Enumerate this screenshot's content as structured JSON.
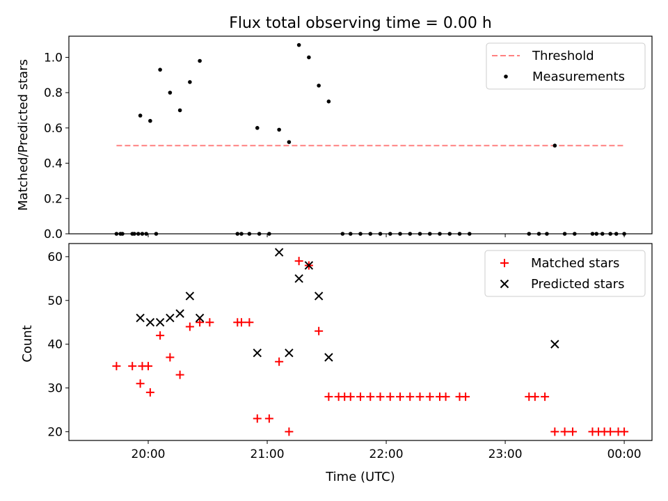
{
  "title": "Flux total observing time = 0.00 h",
  "chart_data": [
    {
      "type": "scatter",
      "ylabel": "Matched/Predicted stars",
      "ylim": [
        0,
        1.12
      ],
      "xlim": [
        "19:20",
        "00:14"
      ],
      "yticks": [
        "0.0",
        "0.2",
        "0.4",
        "0.6",
        "0.8",
        "1.0"
      ],
      "ytick_values": [
        0,
        0.2,
        0.4,
        0.6,
        0.8,
        1.0
      ],
      "legend": {
        "position": "top-right",
        "entries": [
          "Threshold",
          "Measurements"
        ]
      },
      "series": [
        {
          "name": "Threshold",
          "style": "dashed-line",
          "color": "#ff8080",
          "points": [
            [
              "19:44",
              0.5
            ],
            [
              "00:00",
              0.5
            ]
          ]
        },
        {
          "name": "Measurements",
          "style": "dot",
          "color": "#000000",
          "points": [
            [
              "19:44",
              0.0
            ],
            [
              "19:52",
              0.0
            ],
            [
              "19:47",
              0.0
            ],
            [
              "19:46",
              0.0
            ],
            [
              "19:53",
              0.0
            ],
            [
              "19:55",
              0.0
            ],
            [
              "19:57",
              0.0
            ],
            [
              "19:59",
              0.0
            ],
            [
              "20:04",
              0.0
            ],
            [
              "19:56",
              0.67
            ],
            [
              "20:01",
              0.64
            ],
            [
              "20:06",
              0.93
            ],
            [
              "20:11",
              0.8
            ],
            [
              "20:16",
              0.7
            ],
            [
              "20:21",
              0.86
            ],
            [
              "20:26",
              0.98
            ],
            [
              "20:51",
              0.0
            ],
            [
              "20:45",
              0.0
            ],
            [
              "20:47",
              0.0
            ],
            [
              "20:56",
              0.0
            ],
            [
              "21:01",
              0.0
            ],
            [
              "20:55",
              0.6
            ],
            [
              "21:06",
              0.59
            ],
            [
              "21:11",
              0.52
            ],
            [
              "21:16",
              1.07
            ],
            [
              "21:21",
              1.0
            ],
            [
              "21:26",
              0.84
            ],
            [
              "21:31",
              0.75
            ],
            [
              "21:38",
              0.0
            ],
            [
              "21:42",
              0.0
            ],
            [
              "21:47",
              0.0
            ],
            [
              "21:52",
              0.0
            ],
            [
              "21:57",
              0.0
            ],
            [
              "22:02",
              0.0
            ],
            [
              "22:07",
              0.0
            ],
            [
              "22:12",
              0.0
            ],
            [
              "22:17",
              0.0
            ],
            [
              "22:22",
              0.0
            ],
            [
              "22:27",
              0.0
            ],
            [
              "22:32",
              0.0
            ],
            [
              "22:37",
              0.0
            ],
            [
              "22:42",
              0.0
            ],
            [
              "23:12",
              0.0
            ],
            [
              "23:17",
              0.0
            ],
            [
              "23:21",
              0.0
            ],
            [
              "23:25",
              0.5
            ],
            [
              "23:30",
              0.0
            ],
            [
              "23:35",
              0.0
            ],
            [
              "23:44",
              0.0
            ],
            [
              "23:46",
              0.0
            ],
            [
              "23:49",
              0.0
            ],
            [
              "23:53",
              0.0
            ],
            [
              "23:56",
              0.0
            ],
            [
              "00:00",
              0.0
            ]
          ]
        }
      ]
    },
    {
      "type": "scatter",
      "xlabel": "Time (UTC)",
      "ylabel": "Count",
      "ylim": [
        18,
        63
      ],
      "xlim": [
        "19:20",
        "00:14"
      ],
      "xticks": [
        "20:00",
        "21:00",
        "22:00",
        "23:00",
        "00:00"
      ],
      "yticks": [
        "20",
        "30",
        "40",
        "50",
        "60"
      ],
      "ytick_values": [
        20,
        30,
        40,
        50,
        60
      ],
      "legend": {
        "position": "top-right",
        "entries": [
          "Matched stars",
          "Predicted stars"
        ]
      },
      "series": [
        {
          "name": "Matched stars",
          "marker": "plus",
          "color": "#ff0000",
          "points": [
            [
              "19:44",
              35
            ],
            [
              "19:52",
              35
            ],
            [
              "19:57",
              35
            ],
            [
              "20:00",
              35
            ],
            [
              "19:56",
              31
            ],
            [
              "20:01",
              29
            ],
            [
              "20:06",
              42
            ],
            [
              "20:11",
              37
            ],
            [
              "20:16",
              33
            ],
            [
              "20:21",
              44
            ],
            [
              "20:26",
              45
            ],
            [
              "20:31",
              45
            ],
            [
              "20:45",
              45
            ],
            [
              "20:47",
              45
            ],
            [
              "20:51",
              45
            ],
            [
              "20:55",
              23
            ],
            [
              "21:01",
              23
            ],
            [
              "21:06",
              36
            ],
            [
              "21:11",
              20
            ],
            [
              "21:16",
              59
            ],
            [
              "21:21",
              58
            ],
            [
              "21:26",
              43
            ],
            [
              "21:31",
              28
            ],
            [
              "21:36",
              28
            ],
            [
              "21:39",
              28
            ],
            [
              "21:42",
              28
            ],
            [
              "21:47",
              28
            ],
            [
              "21:52",
              28
            ],
            [
              "21:57",
              28
            ],
            [
              "22:02",
              28
            ],
            [
              "22:07",
              28
            ],
            [
              "22:12",
              28
            ],
            [
              "22:17",
              28
            ],
            [
              "22:22",
              28
            ],
            [
              "22:27",
              28
            ],
            [
              "22:30",
              28
            ],
            [
              "22:37",
              28
            ],
            [
              "22:40",
              28
            ],
            [
              "23:12",
              28
            ],
            [
              "23:15",
              28
            ],
            [
              "23:20",
              28
            ],
            [
              "23:25",
              20
            ],
            [
              "23:30",
              20
            ],
            [
              "23:34",
              20
            ],
            [
              "23:44",
              20
            ],
            [
              "23:47",
              20
            ],
            [
              "23:50",
              20
            ],
            [
              "23:53",
              20
            ],
            [
              "23:57",
              20
            ],
            [
              "00:00",
              20
            ]
          ]
        },
        {
          "name": "Predicted stars",
          "marker": "x",
          "color": "#000000",
          "points": [
            [
              "19:56",
              46
            ],
            [
              "20:01",
              45
            ],
            [
              "20:06",
              45
            ],
            [
              "20:11",
              46
            ],
            [
              "20:16",
              47
            ],
            [
              "20:21",
              51
            ],
            [
              "20:26",
              46
            ],
            [
              "20:55",
              38
            ],
            [
              "21:06",
              61
            ],
            [
              "21:11",
              38
            ],
            [
              "21:16",
              55
            ],
            [
              "21:21",
              58
            ],
            [
              "21:26",
              51
            ],
            [
              "21:31",
              37
            ],
            [
              "23:25",
              40
            ]
          ]
        }
      ]
    }
  ]
}
